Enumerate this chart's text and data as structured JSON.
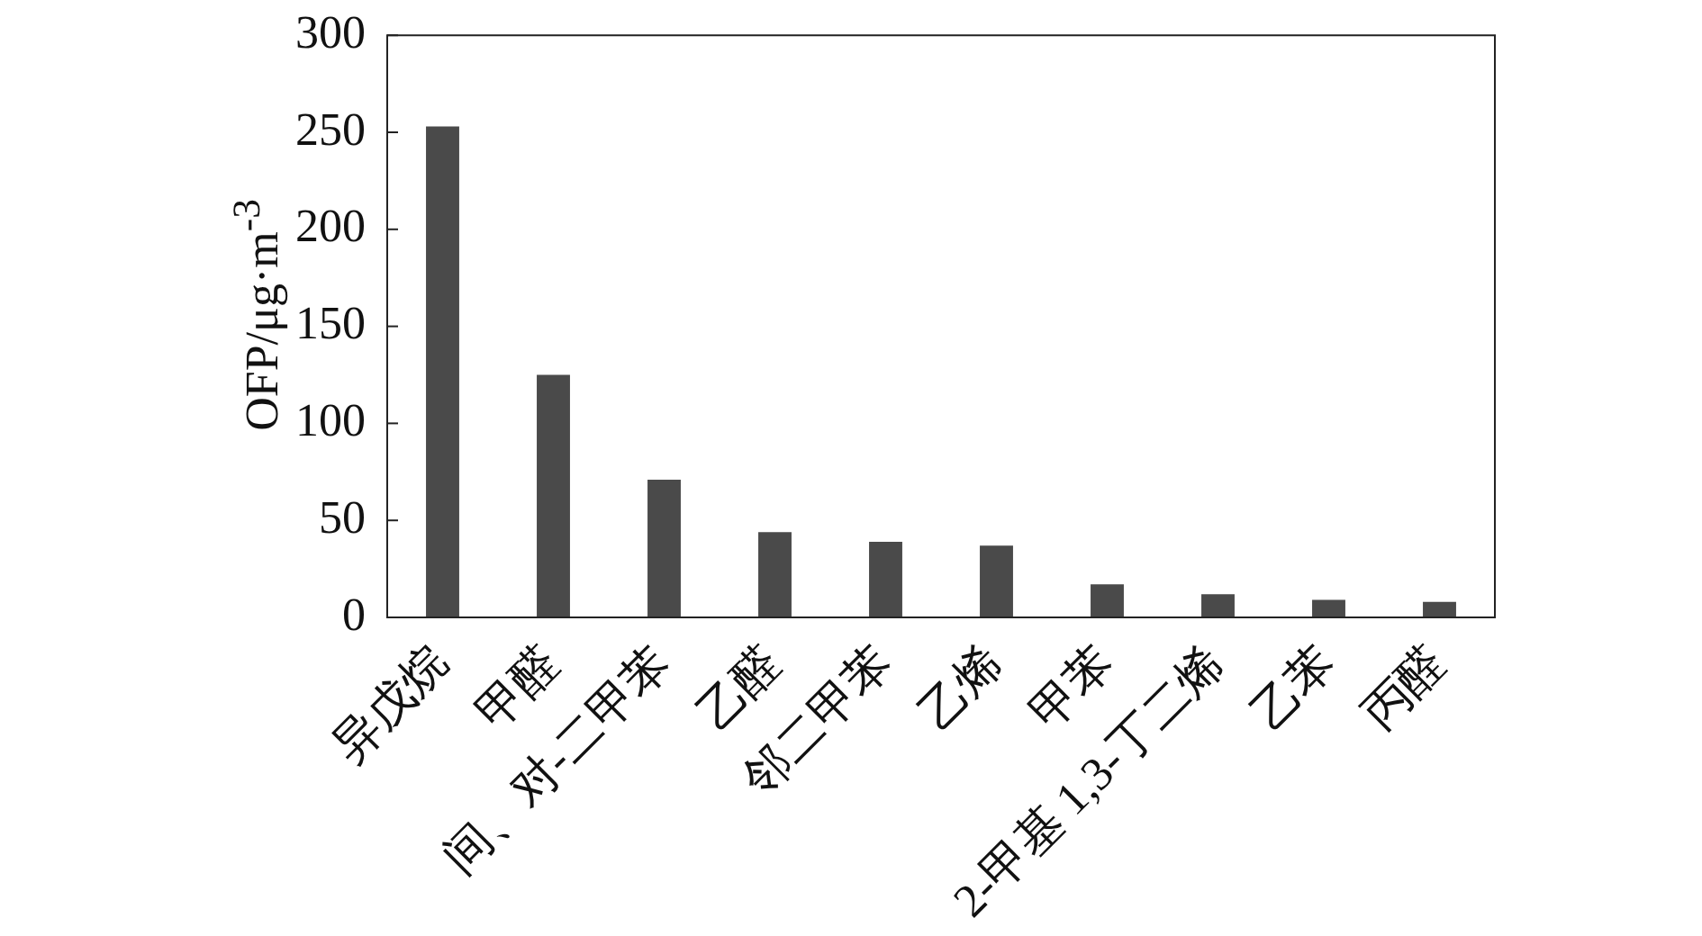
{
  "chart_data": {
    "type": "bar",
    "ylabel": "OFP/μg·m$^{-3}$",
    "categories": [
      "异戊烷",
      "甲醛",
      "间、对-二甲苯",
      "乙醛",
      "邻二甲苯",
      "乙烯",
      "甲苯",
      "2-甲基 1,3-丁二烯",
      "乙苯",
      "丙醛"
    ],
    "values": [
      253,
      125,
      71,
      44,
      39,
      37,
      17,
      12,
      9,
      8
    ],
    "color": "#4a4a4a",
    "ylim": [
      0,
      300
    ],
    "yticks": [
      0,
      50,
      100,
      150,
      200,
      250,
      300
    ]
  }
}
